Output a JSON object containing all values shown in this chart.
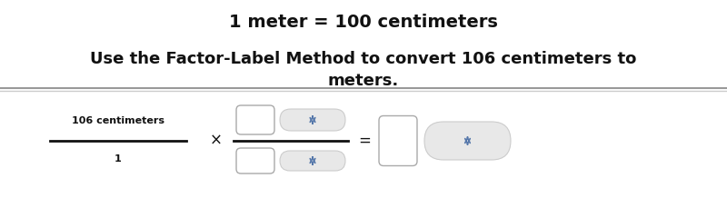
{
  "title_line1": "1 meter = 100 centimeters",
  "title_line2": "Use the Factor-Label Method to convert 106 centimeters to\nmeters.",
  "title_fontsize": 14,
  "subtitle_fontsize": 13,
  "bg_color": "#ffffff",
  "fraction_numerator": "106 centimeters",
  "fraction_denominator": "1",
  "multiply_sign": "×",
  "equals_sign": "=",
  "box_facecolor": "#ffffff",
  "box_edgecolor": "#aaaaaa",
  "dropdown_facecolor": "#e8e8e8",
  "dropdown_edgecolor": "#cccccc",
  "arrow_color": "#5577aa",
  "line_color": "#111111",
  "sep_color_dark": "#999999",
  "sep_color_light": "#cccccc",
  "text_color": "#111111"
}
